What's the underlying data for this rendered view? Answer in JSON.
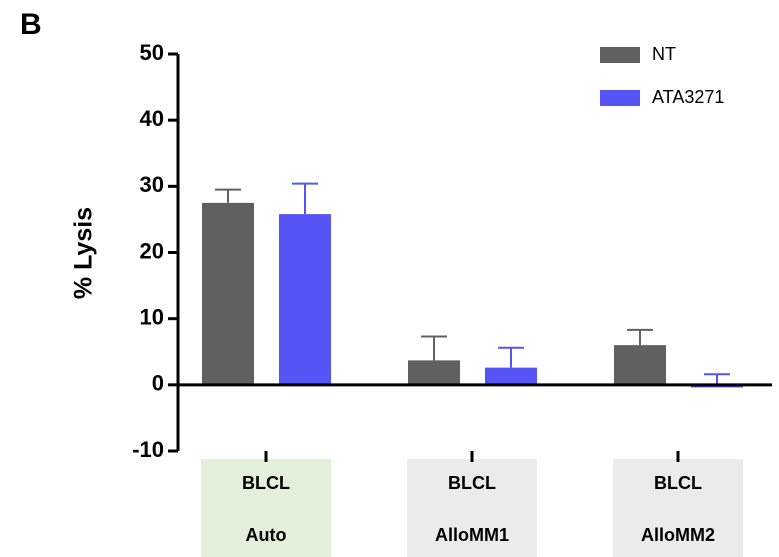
{
  "panel_label": "B",
  "chart_data": {
    "type": "bar",
    "ylabel": "% Lysis",
    "categories": [
      [
        "BLCL",
        "Auto"
      ],
      [
        "BLCL",
        "AlloMM1"
      ],
      [
        "BLCL",
        "AlloMM2"
      ]
    ],
    "category_colors": [
      "#e2efd9",
      "#ebebeb",
      "#ebebeb"
    ],
    "series": [
      {
        "name": "NT",
        "color": "#606060",
        "values": [
          27.5,
          3.7,
          6.0
        ],
        "errors": [
          2.0,
          3.6,
          2.3
        ]
      },
      {
        "name": "ATA3271",
        "color": "#5555f5",
        "values": [
          25.8,
          2.6,
          -0.4
        ],
        "errors": [
          4.6,
          3.0,
          2.0
        ]
      }
    ],
    "ylim": [
      -10,
      50
    ],
    "yticks": [
      -10,
      0,
      10,
      20,
      30,
      40,
      50
    ]
  }
}
